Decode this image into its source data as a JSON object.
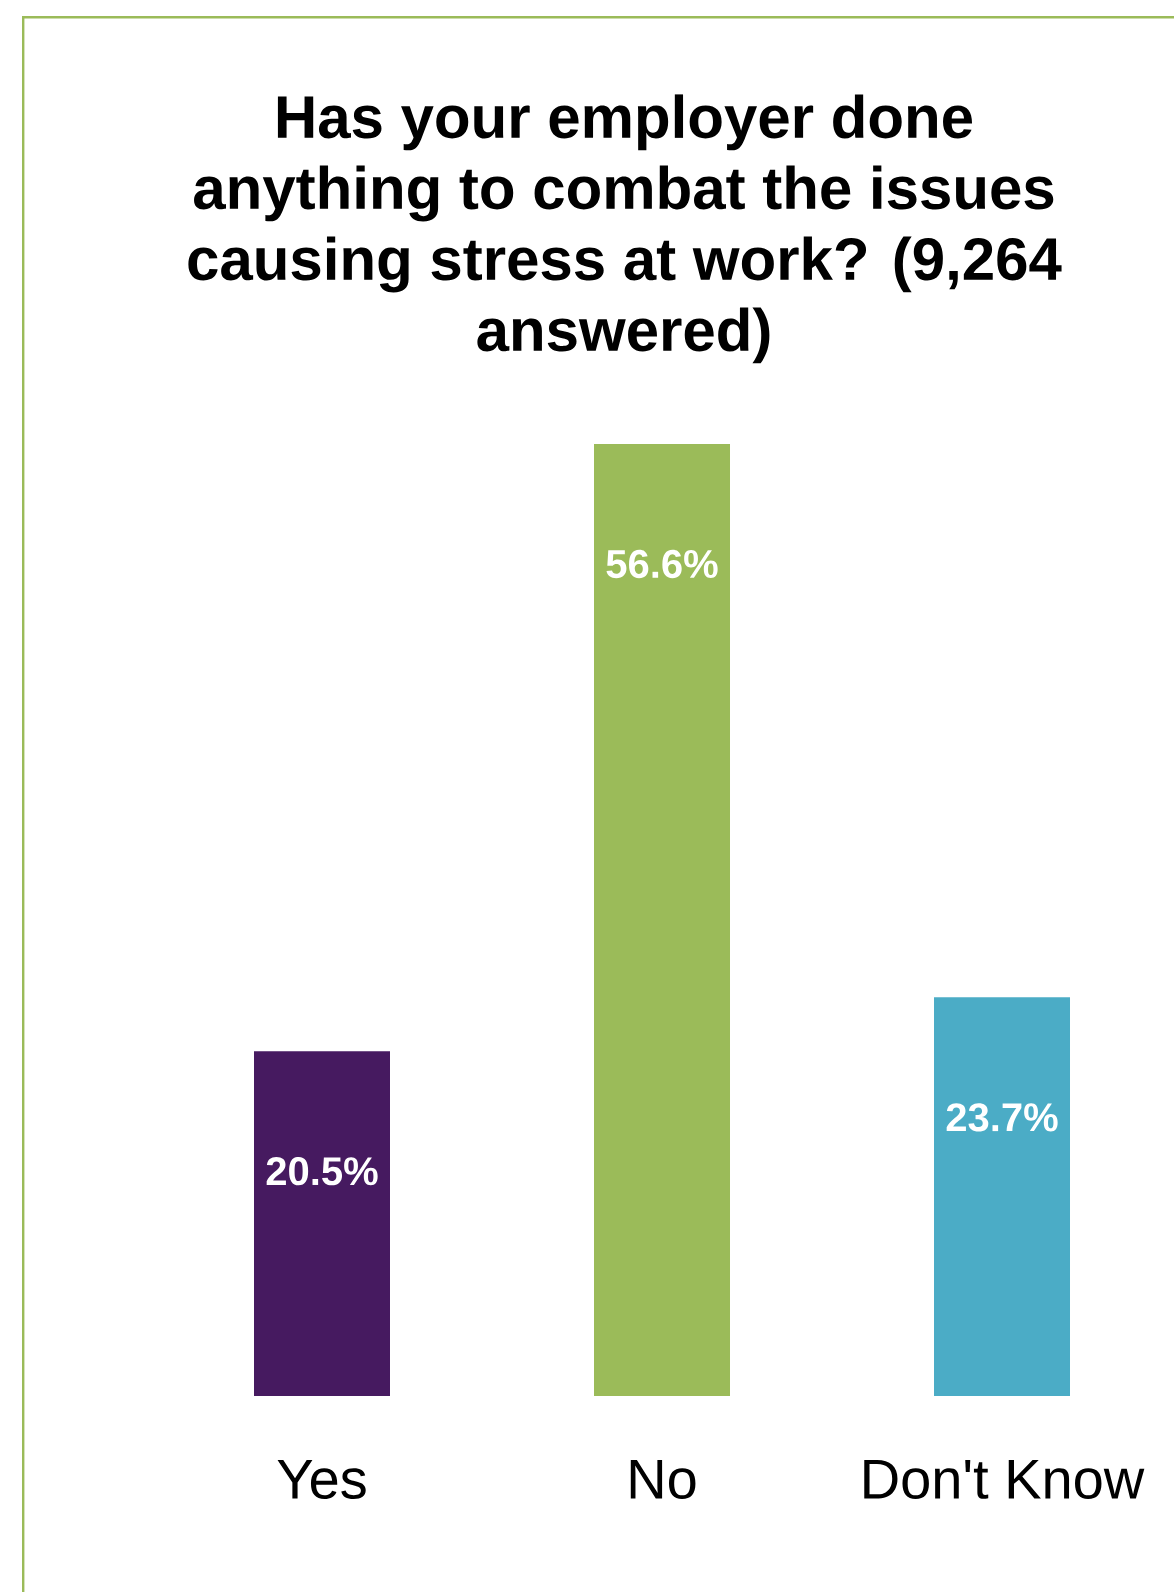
{
  "chart_data": {
    "type": "bar",
    "title": "Has your employer done anything to combat the issues causing stress at work? (9,264 answered)",
    "categories": [
      "Yes",
      "No",
      "Don't Know"
    ],
    "values": [
      20.5,
      56.6,
      23.7
    ],
    "colors": [
      "#461a60",
      "#9bbb59",
      "#4bacc6"
    ],
    "value_labels": [
      "20.5%",
      "56.6%",
      "23.7%"
    ]
  }
}
